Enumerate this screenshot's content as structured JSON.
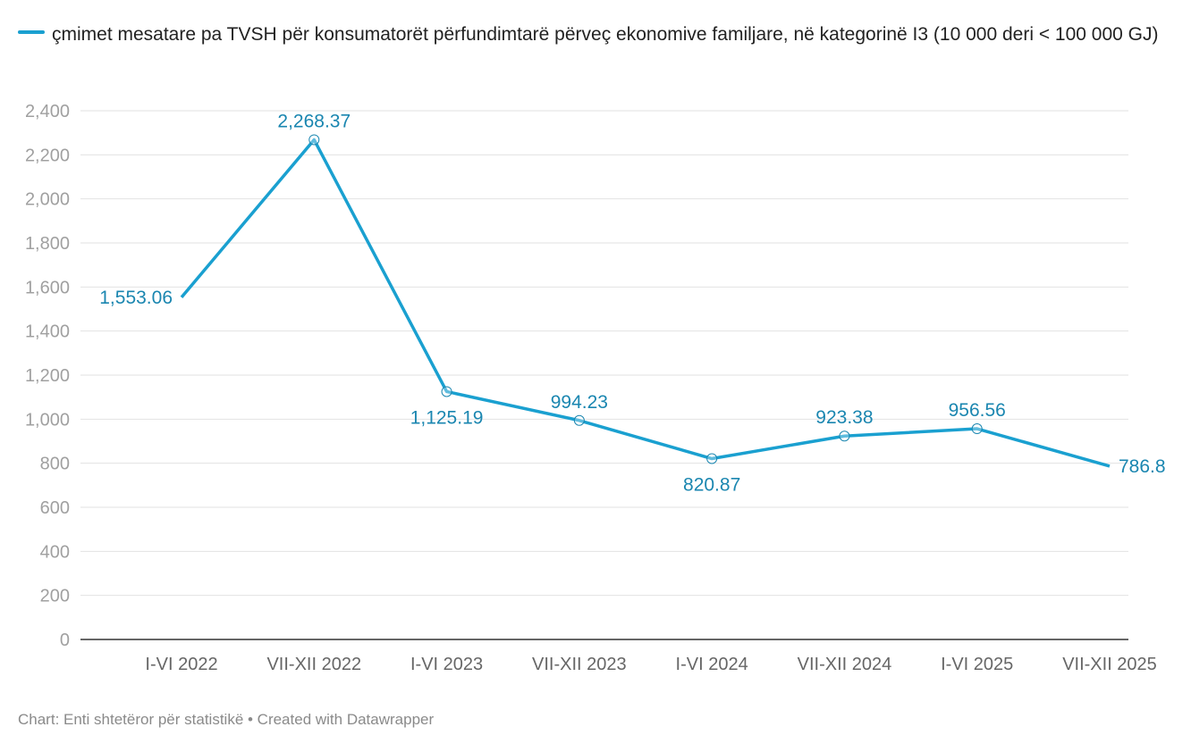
{
  "chart_data": {
    "type": "line",
    "legend": "çmimet mesatare pa TVSH për konsumatorët përfundimtarë përveç ekonomive familjare, në kategorinë I3 (10 000 deri < 100 000 GJ)",
    "legend_placement": "top-left",
    "categories": [
      "I-VI 2022",
      "VII-XII 2022",
      "I-VI 2023",
      "VII-XII 2023",
      "I-VI 2024",
      "VII-XII 2024",
      "I-VI 2025",
      "VII-XII 2025"
    ],
    "series": [
      {
        "name": "çmimet mesatare pa TVSH për konsumatorët përfundimtarë përveç ekonomive familjare, në kategorinë I3 (10 000 deri < 100 000 GJ)",
        "values": [
          1553.06,
          2268.37,
          1125.19,
          994.23,
          820.87,
          923.38,
          956.56,
          786.8
        ]
      }
    ],
    "value_labels": [
      "1,553.06",
      "2,268.37",
      "1,125.19",
      "994.23",
      "820.87",
      "923.38",
      "956.56",
      "786.8"
    ],
    "label_positions": [
      "left",
      "above",
      "below",
      "above",
      "below",
      "above",
      "above",
      "right"
    ],
    "ylim": [
      0,
      2400
    ],
    "yticks": [
      0,
      200,
      400,
      600,
      800,
      1000,
      1200,
      1400,
      1600,
      1800,
      2000,
      2200,
      2400
    ],
    "ytick_labels": [
      "0",
      "200",
      "400",
      "600",
      "800",
      "1,000",
      "1,200",
      "1,400",
      "1,600",
      "1,800",
      "2,000",
      "2,200",
      "2,400"
    ],
    "grid": true,
    "colors": {
      "line": "#1aa0d0",
      "label": "#1a86b0",
      "grid": "#e2e2e2",
      "tick": "#a0a0a0",
      "axis": "#333333"
    }
  },
  "footer": "Chart: Enti shtetëror për statistikë • Created with Datawrapper"
}
